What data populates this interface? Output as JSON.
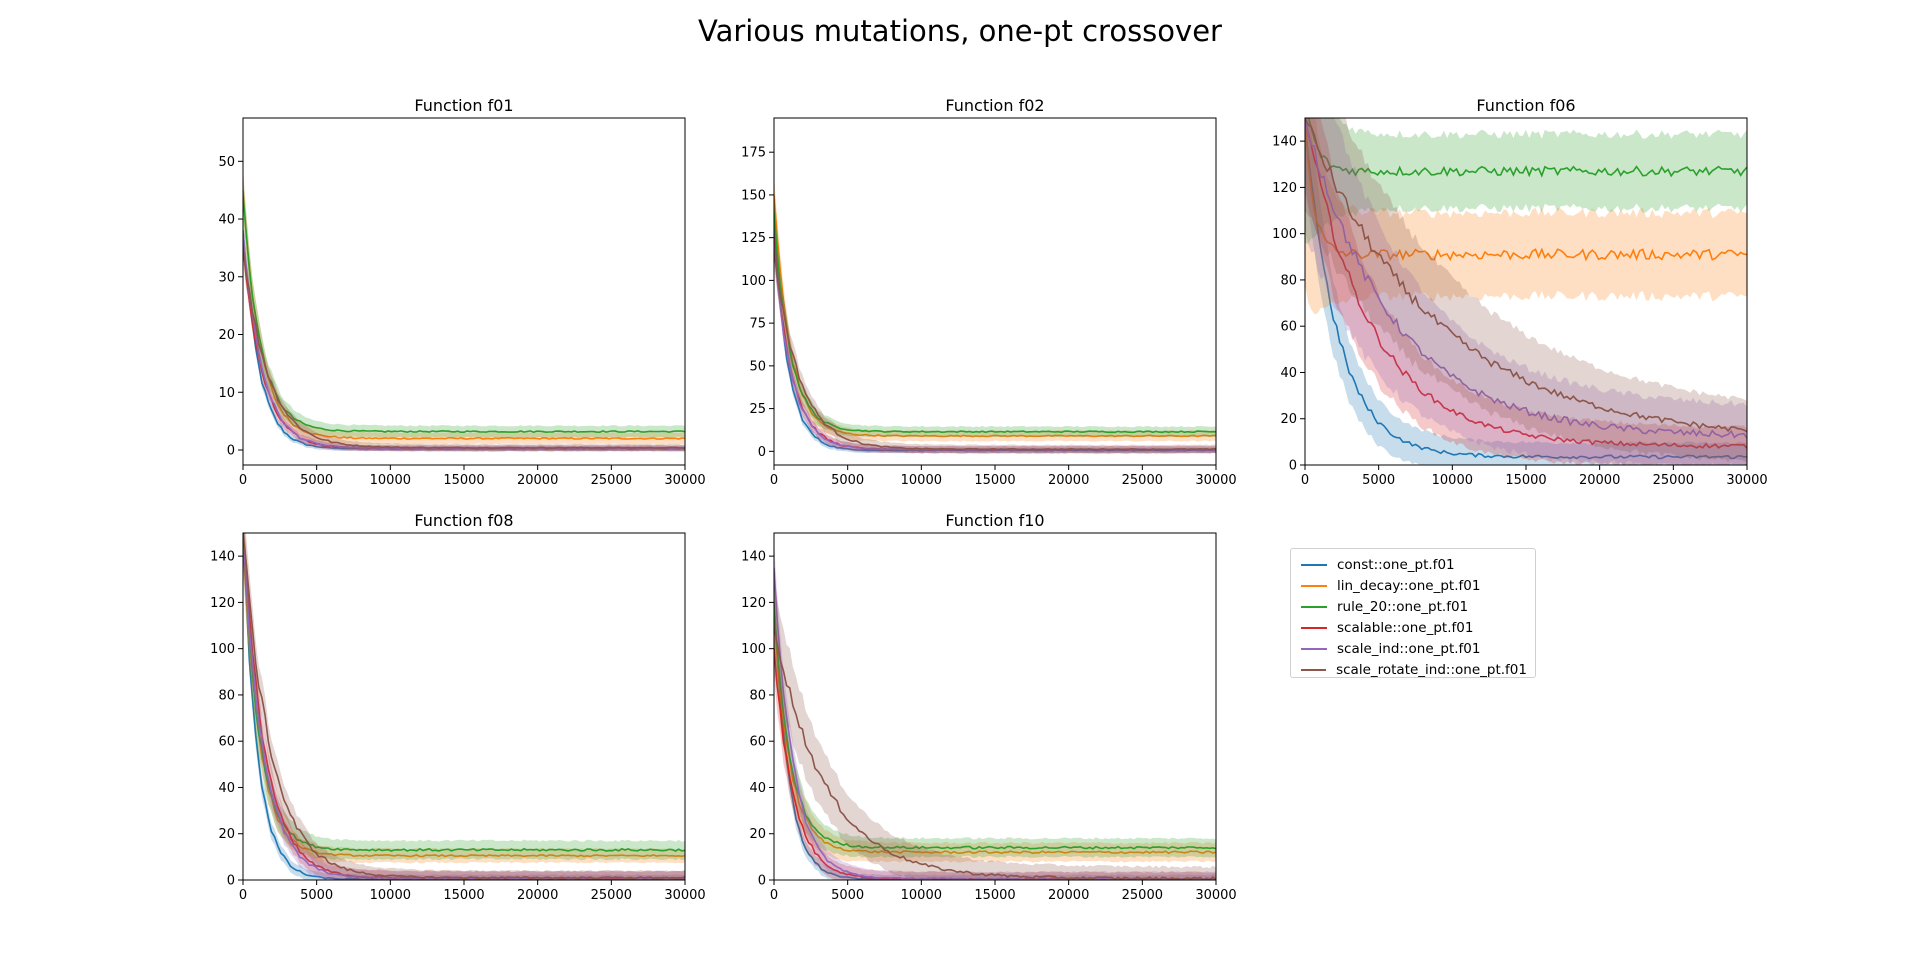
{
  "figure": {
    "title": "Various mutations, one-pt crossover"
  },
  "legend": [
    {
      "label": "const::one_pt.f01",
      "color": "#1f77b4"
    },
    {
      "label": "lin_decay::one_pt.f01",
      "color": "#ff7f0e"
    },
    {
      "label": "rule_20::one_pt.f01",
      "color": "#2ca02c"
    },
    {
      "label": "scalable::one_pt.f01",
      "color": "#d62728"
    },
    {
      "label": "scale_ind::one_pt.f01",
      "color": "#9467bd"
    },
    {
      "label": "scale_rotate_ind::one_pt.f01",
      "color": "#8c564b"
    }
  ],
  "chart_data": [
    {
      "type": "line",
      "title": "Function f01",
      "xlim": [
        0,
        30000
      ],
      "ylim": [
        -2.6,
        57.5
      ],
      "xticks": [
        0,
        5000,
        10000,
        15000,
        20000,
        25000,
        30000
      ],
      "yticks": [
        0,
        10,
        20,
        30,
        40,
        50
      ],
      "series": [
        {
          "name": "const::one_pt.f01",
          "color": "#1f77b4",
          "start": 38,
          "final": 0.2,
          "tau": 1100,
          "band": 0.4
        },
        {
          "name": "lin_decay::one_pt.f01",
          "color": "#ff7f0e",
          "start": 45,
          "final": 2.0,
          "tau": 1200,
          "band": 1.0
        },
        {
          "name": "rule_20::one_pt.f01",
          "color": "#2ca02c",
          "start": 44,
          "final": 3.2,
          "tau": 1200,
          "band": 1.0
        },
        {
          "name": "scalable::one_pt.f01",
          "color": "#d62728",
          "start": 36,
          "final": 0.3,
          "tau": 1300,
          "band": 0.5
        },
        {
          "name": "scale_ind::one_pt.f01",
          "color": "#9467bd",
          "start": 38,
          "final": 0.3,
          "tau": 1300,
          "band": 0.5
        },
        {
          "name": "scale_rotate_ind::one_pt.f01",
          "color": "#8c564b",
          "start": 35,
          "final": 0.4,
          "tau": 1700,
          "band": 0.6
        }
      ]
    },
    {
      "type": "line",
      "title": "Function f02",
      "xlim": [
        0,
        30000
      ],
      "ylim": [
        -8,
        195
      ],
      "xticks": [
        0,
        5000,
        10000,
        15000,
        20000,
        25000,
        30000
      ],
      "yticks": [
        0,
        25,
        50,
        75,
        100,
        125,
        150,
        175
      ],
      "series": [
        {
          "name": "const::one_pt.f01",
          "color": "#1f77b4",
          "start": 130,
          "final": 0.5,
          "tau": 1000,
          "band": 1.5
        },
        {
          "name": "lin_decay::one_pt.f01",
          "color": "#ff7f0e",
          "start": 150,
          "final": 9.0,
          "tau": 1100,
          "band": 3.0
        },
        {
          "name": "rule_20::one_pt.f01",
          "color": "#2ca02c",
          "start": 140,
          "final": 11.5,
          "tau": 1100,
          "band": 3.0
        },
        {
          "name": "scalable::one_pt.f01",
          "color": "#d62728",
          "start": 125,
          "final": 1.0,
          "tau": 1200,
          "band": 2.0
        },
        {
          "name": "scale_ind::one_pt.f01",
          "color": "#9467bd",
          "start": 120,
          "final": 1.0,
          "tau": 1200,
          "band": 2.0
        },
        {
          "name": "scale_rotate_ind::one_pt.f01",
          "color": "#8c564b",
          "start": 118,
          "final": 1.2,
          "tau": 1700,
          "band": 2.5
        }
      ]
    },
    {
      "type": "line",
      "title": "Function f06",
      "xlim": [
        0,
        30000
      ],
      "ylim": [
        0,
        150
      ],
      "xticks": [
        0,
        5000,
        10000,
        15000,
        20000,
        25000,
        30000
      ],
      "yticks": [
        0,
        20,
        40,
        60,
        80,
        100,
        120,
        140
      ],
      "series": [
        {
          "name": "const::one_pt.f01",
          "color": "#1f77b4",
          "start": 150,
          "final": 3.5,
          "tau": 2200,
          "band": 6
        },
        {
          "name": "lin_decay::one_pt.f01",
          "color": "#ff7f0e",
          "start": 150,
          "final": 91,
          "tau": 600,
          "band": 18
        },
        {
          "name": "rule_20::one_pt.f01",
          "color": "#2ca02c",
          "start": 160,
          "final": 127,
          "tau": 700,
          "band": 16
        },
        {
          "name": "scalable::one_pt.f01",
          "color": "#d62728",
          "start": 150,
          "final": 8,
          "tau": 4500,
          "band": 8
        },
        {
          "name": "scale_ind::one_pt.f01",
          "color": "#9467bd",
          "start": 150,
          "final": 12,
          "tau": 6000,
          "band": 12
        },
        {
          "name": "scale_rotate_ind::one_pt.f01",
          "color": "#8c564b",
          "start": 150,
          "final": 10,
          "tau": 9000,
          "band": 10
        }
      ]
    },
    {
      "type": "line",
      "title": "Function f08",
      "xlim": [
        0,
        30000
      ],
      "ylim": [
        0,
        150
      ],
      "xticks": [
        0,
        5000,
        10000,
        15000,
        20000,
        25000,
        30000
      ],
      "yticks": [
        0,
        20,
        40,
        60,
        80,
        100,
        120,
        140
      ],
      "series": [
        {
          "name": "const::one_pt.f01",
          "color": "#1f77b4",
          "start": 150,
          "final": 0.3,
          "tau": 1000,
          "band": 2
        },
        {
          "name": "lin_decay::one_pt.f01",
          "color": "#ff7f0e",
          "start": 150,
          "final": 10.5,
          "tau": 1100,
          "band": 3
        },
        {
          "name": "rule_20::one_pt.f01",
          "color": "#2ca02c",
          "start": 150,
          "final": 13,
          "tau": 1100,
          "band": 4
        },
        {
          "name": "scalable::one_pt.f01",
          "color": "#d62728",
          "start": 150,
          "final": 0.8,
          "tau": 1500,
          "band": 3
        },
        {
          "name": "scale_ind::one_pt.f01",
          "color": "#9467bd",
          "start": 150,
          "final": 0.8,
          "tau": 1400,
          "band": 3
        },
        {
          "name": "scale_rotate_ind::one_pt.f01",
          "color": "#8c564b",
          "start": 150,
          "final": 1.0,
          "tau": 1900,
          "band": 3
        }
      ]
    },
    {
      "type": "line",
      "title": "Function f10",
      "xlim": [
        0,
        30000
      ],
      "ylim": [
        0,
        150
      ],
      "xticks": [
        0,
        5000,
        10000,
        15000,
        20000,
        25000,
        30000
      ],
      "yticks": [
        0,
        20,
        40,
        60,
        80,
        100,
        120,
        140
      ],
      "series": [
        {
          "name": "const::one_pt.f01",
          "color": "#1f77b4",
          "start": 120,
          "final": 0.2,
          "tau": 1000,
          "band": 2
        },
        {
          "name": "lin_decay::one_pt.f01",
          "color": "#ff7f0e",
          "start": 115,
          "final": 12,
          "tau": 1100,
          "band": 4
        },
        {
          "name": "rule_20::one_pt.f01",
          "color": "#2ca02c",
          "start": 118,
          "final": 14,
          "tau": 1100,
          "band": 4
        },
        {
          "name": "scalable::one_pt.f01",
          "color": "#d62728",
          "start": 100,
          "final": 0.4,
          "tau": 1300,
          "band": 3
        },
        {
          "name": "scale_ind::one_pt.f01",
          "color": "#9467bd",
          "start": 135,
          "final": 0.5,
          "tau": 1300,
          "band": 3
        },
        {
          "name": "scale_rotate_ind::one_pt.f01",
          "color": "#8c564b",
          "start": 110,
          "final": 0.6,
          "tau": 3500,
          "band": 5
        }
      ]
    }
  ]
}
